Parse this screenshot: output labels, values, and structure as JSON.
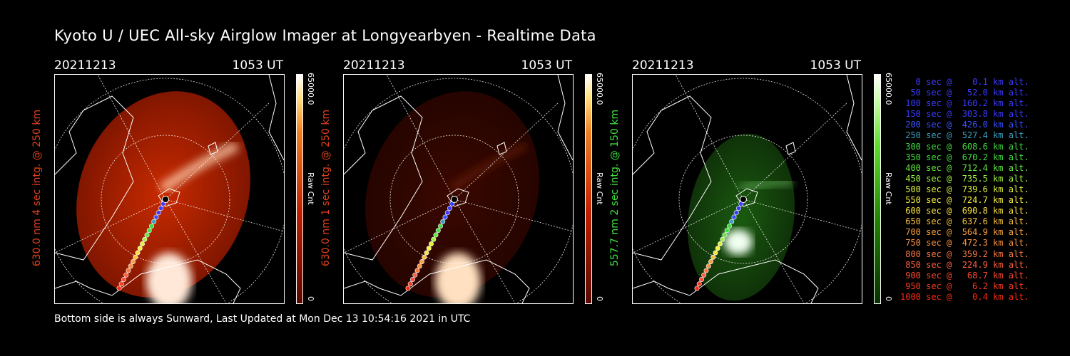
{
  "title": "Kyoto U / UEC All-sky Airglow Imager at Longyearbyen - Realtime Data",
  "footer": "Bottom side is always Sunward, Last Updated at Mon Dec 13 10:54:16 2021 in UTC",
  "panels": [
    {
      "date": "20211213",
      "time": "1053 UT",
      "ylabel": "630.0 nm 4 sec intg. @ 250 km",
      "label_color": "#e0401c",
      "cbar_max": "65000.0",
      "cbar_min": "0",
      "cbar_unit": "Raw Cnt",
      "scheme": "red-bright"
    },
    {
      "date": "20211213",
      "time": "1053 UT",
      "ylabel": "630.0 nm 1 sec intg. @ 250 km",
      "label_color": "#e0401c",
      "cbar_max": "65000.0",
      "cbar_min": "0",
      "cbar_unit": "Raw Cnt",
      "scheme": "red-dim"
    },
    {
      "date": "20211213",
      "time": "1053 UT",
      "ylabel": "557.7 nm 2 sec intg. @ 150 km",
      "label_color": "#40e040",
      "cbar_max": "65000.0",
      "cbar_min": "0",
      "cbar_unit": "Raw Cnt",
      "scheme": "green"
    }
  ],
  "colors": {
    "red_bar_top": "#ffffff",
    "red_bar_bottom": "#8a1000",
    "green_bar_top": "#ffffff",
    "green_bar_bottom": "#0b4a00"
  },
  "legend": [
    {
      "text": "   0 sec @    0.1 km alt.",
      "color": "#3a3aff"
    },
    {
      "text": "  50 sec @   52.0 km alt.",
      "color": "#3a3aff"
    },
    {
      "text": " 100 sec @  160.2 km alt.",
      "color": "#3a3aff"
    },
    {
      "text": " 150 sec @  303.8 km alt.",
      "color": "#3a3aff"
    },
    {
      "text": " 200 sec @  426.0 km alt.",
      "color": "#3a50ff"
    },
    {
      "text": " 250 sec @  527.4 km alt.",
      "color": "#3aa0c0"
    },
    {
      "text": " 300 sec @  608.6 km alt.",
      "color": "#40d840"
    },
    {
      "text": " 350 sec @  670.2 km alt.",
      "color": "#40e040"
    },
    {
      "text": " 400 sec @  712.4 km alt.",
      "color": "#60e840"
    },
    {
      "text": " 450 sec @  735.5 km alt.",
      "color": "#a0f040"
    },
    {
      "text": " 500 sec @  739.6 km alt.",
      "color": "#e0f040"
    },
    {
      "text": " 550 sec @  724.7 km alt.",
      "color": "#f8f040"
    },
    {
      "text": " 600 sec @  690.8 km alt.",
      "color": "#f8e040"
    },
    {
      "text": " 650 sec @  637.6 km alt.",
      "color": "#f8c040"
    },
    {
      "text": " 700 sec @  564.9 km alt.",
      "color": "#f8a040"
    },
    {
      "text": " 750 sec @  472.3 km alt.",
      "color": "#f89040"
    },
    {
      "text": " 800 sec @  359.2 km alt.",
      "color": "#f87840"
    },
    {
      "text": " 850 sec @  224.9 km alt.",
      "color": "#f86040"
    },
    {
      "text": " 900 sec @   68.7 km alt.",
      "color": "#f84a30"
    },
    {
      "text": " 950 sec @    6.2 km alt.",
      "color": "#f83a20"
    },
    {
      "text": "1000 sec @    0.4 km alt.",
      "color": "#f82a10"
    }
  ]
}
